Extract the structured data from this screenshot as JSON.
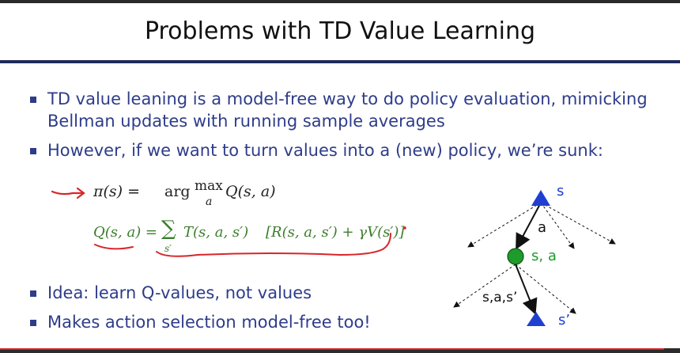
{
  "slide": {
    "title": "Problems with TD Value Learning",
    "bullets": [
      "TD value leaning is a model-free way to do policy evaluation, mimicking Bellman updates with running sample averages",
      "However, if we want to turn values into a (new) policy, we’re sunk:",
      "Idea: learn Q-values, not values",
      "Makes action selection model-free too!"
    ],
    "equations": {
      "policy": {
        "lhs": "π(s) =",
        "arg": "arg",
        "max": "max",
        "sub": "a",
        "rhs": "Q(s, a)"
      },
      "q": {
        "lhs": "Q(s, a) =",
        "sum": "∑",
        "sub": "s′",
        "term": "T(s, a, s′)",
        "bracket": "[R(s, a, s′) + γV(s′)]"
      }
    },
    "diagram": {
      "labels": {
        "top_state": "s",
        "action": "a",
        "qstate": "s, a",
        "transition": "s,a,s’",
        "next_state": "s’"
      }
    }
  },
  "colors": {
    "bullet": "#2e3c8a",
    "equation_green": "#3a7d2c",
    "annotation_red": "#d8262a",
    "node_blue": "#1f3fd1",
    "node_green": "#1f9a2c"
  }
}
